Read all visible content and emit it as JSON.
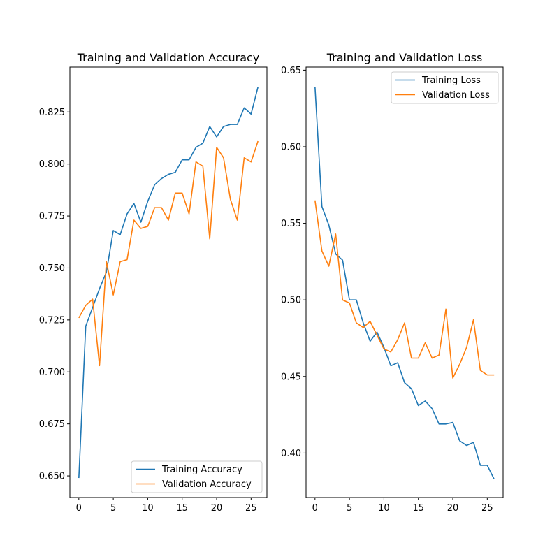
{
  "chart_data": [
    {
      "type": "line",
      "title": "Training and Validation Accuracy",
      "xlabel": "",
      "ylabel": "",
      "xlim": [
        -1.3,
        27.3
      ],
      "ylim": [
        0.6396,
        0.8466
      ],
      "xticks": [
        0,
        5,
        10,
        15,
        20,
        25
      ],
      "yticks": [
        0.65,
        0.675,
        0.7,
        0.725,
        0.75,
        0.775,
        0.8,
        0.825
      ],
      "ytick_labels": [
        "0.650",
        "0.675",
        "0.700",
        "0.725",
        "0.750",
        "0.775",
        "0.800",
        "0.825"
      ],
      "grid": false,
      "legend": "lower-right",
      "x": [
        0,
        1,
        2,
        3,
        4,
        5,
        6,
        7,
        8,
        9,
        10,
        11,
        12,
        13,
        14,
        15,
        16,
        17,
        18,
        19,
        20,
        21,
        22,
        23,
        24,
        25,
        26
      ],
      "series": [
        {
          "name": "Training Accuracy",
          "color": "#1f77b4",
          "values": [
            0.649,
            0.722,
            0.731,
            0.74,
            0.748,
            0.768,
            0.766,
            0.776,
            0.781,
            0.772,
            0.782,
            0.79,
            0.793,
            0.795,
            0.796,
            0.802,
            0.802,
            0.808,
            0.81,
            0.818,
            0.813,
            0.818,
            0.819,
            0.819,
            0.827,
            0.824,
            0.837
          ]
        },
        {
          "name": "Validation Accuracy",
          "color": "#ff7f0e",
          "values": [
            0.726,
            0.732,
            0.735,
            0.703,
            0.753,
            0.737,
            0.753,
            0.754,
            0.773,
            0.769,
            0.77,
            0.779,
            0.779,
            0.773,
            0.786,
            0.786,
            0.776,
            0.801,
            0.799,
            0.764,
            0.808,
            0.803,
            0.783,
            0.773,
            0.803,
            0.801,
            0.811
          ]
        }
      ]
    },
    {
      "type": "line",
      "title": "Training and Validation Loss",
      "xlabel": "",
      "ylabel": "",
      "xlim": [
        -1.3,
        27.3
      ],
      "ylim": [
        0.371,
        0.652
      ],
      "xticks": [
        0,
        5,
        10,
        15,
        20,
        25
      ],
      "yticks": [
        0.4,
        0.45,
        0.5,
        0.55,
        0.6,
        0.65
      ],
      "ytick_labels": [
        "0.40",
        "0.45",
        "0.50",
        "0.55",
        "0.60",
        "0.65"
      ],
      "grid": false,
      "legend": "upper-right",
      "x": [
        0,
        1,
        2,
        3,
        4,
        5,
        6,
        7,
        8,
        9,
        10,
        11,
        12,
        13,
        14,
        15,
        16,
        17,
        18,
        19,
        20,
        21,
        22,
        23,
        24,
        25,
        26
      ],
      "series": [
        {
          "name": "Training Loss",
          "color": "#1f77b4",
          "values": [
            0.639,
            0.561,
            0.549,
            0.53,
            0.526,
            0.5,
            0.5,
            0.485,
            0.473,
            0.479,
            0.469,
            0.457,
            0.459,
            0.446,
            0.442,
            0.431,
            0.434,
            0.429,
            0.419,
            0.419,
            0.42,
            0.408,
            0.405,
            0.407,
            0.392,
            0.392,
            0.383
          ]
        },
        {
          "name": "Validation Loss",
          "color": "#ff7f0e",
          "values": [
            0.565,
            0.532,
            0.522,
            0.543,
            0.5,
            0.498,
            0.485,
            0.482,
            0.486,
            0.477,
            0.468,
            0.466,
            0.474,
            0.485,
            0.462,
            0.462,
            0.472,
            0.462,
            0.464,
            0.494,
            0.449,
            0.458,
            0.469,
            0.487,
            0.454,
            0.451,
            0.451
          ]
        }
      ]
    }
  ]
}
